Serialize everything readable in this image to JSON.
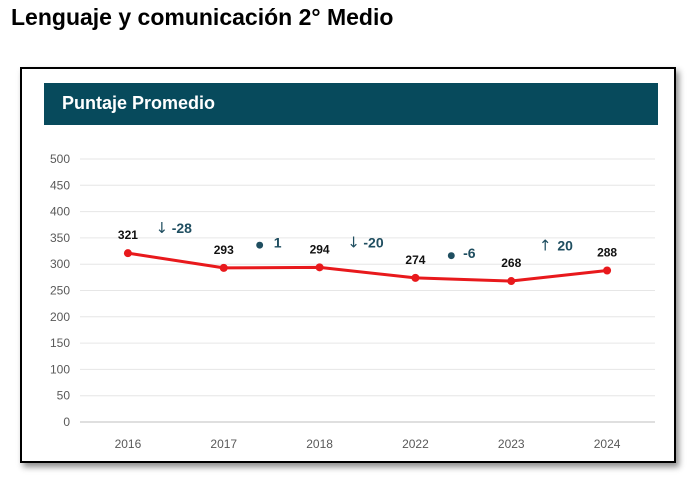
{
  "page": {
    "heading": "Lenguaje y comunicación 2° Medio"
  },
  "chart_data": {
    "type": "line",
    "title": "Puntaje Promedio",
    "xlabel": "",
    "ylabel": "",
    "categories": [
      "2016",
      "2017",
      "2018",
      "2022",
      "2023",
      "2024"
    ],
    "series": [
      {
        "values": [
          321,
          293,
          294,
          274,
          268,
          288
        ],
        "color": "#e8191c"
      }
    ],
    "data_labels": [
      "321",
      "293",
      "294",
      "274",
      "268",
      "288"
    ],
    "ylim": [
      0,
      500
    ],
    "yticks": [
      0,
      50,
      100,
      150,
      200,
      250,
      300,
      350,
      400,
      450,
      500
    ],
    "grid": true,
    "changes": [
      {
        "symbol": "↓",
        "text": "-28"
      },
      {
        "symbol": "●",
        "text": "1"
      },
      {
        "symbol": "↓",
        "text": "-20"
      },
      {
        "symbol": "●",
        "text": "-6"
      },
      {
        "symbol": "↑",
        "text": "20"
      }
    ],
    "colors": {
      "header_band": "#074a5c",
      "line": "#e8191c",
      "change_text": "#1f4e60",
      "grid": "#e6e6e6",
      "axis_text": "#595959"
    }
  }
}
